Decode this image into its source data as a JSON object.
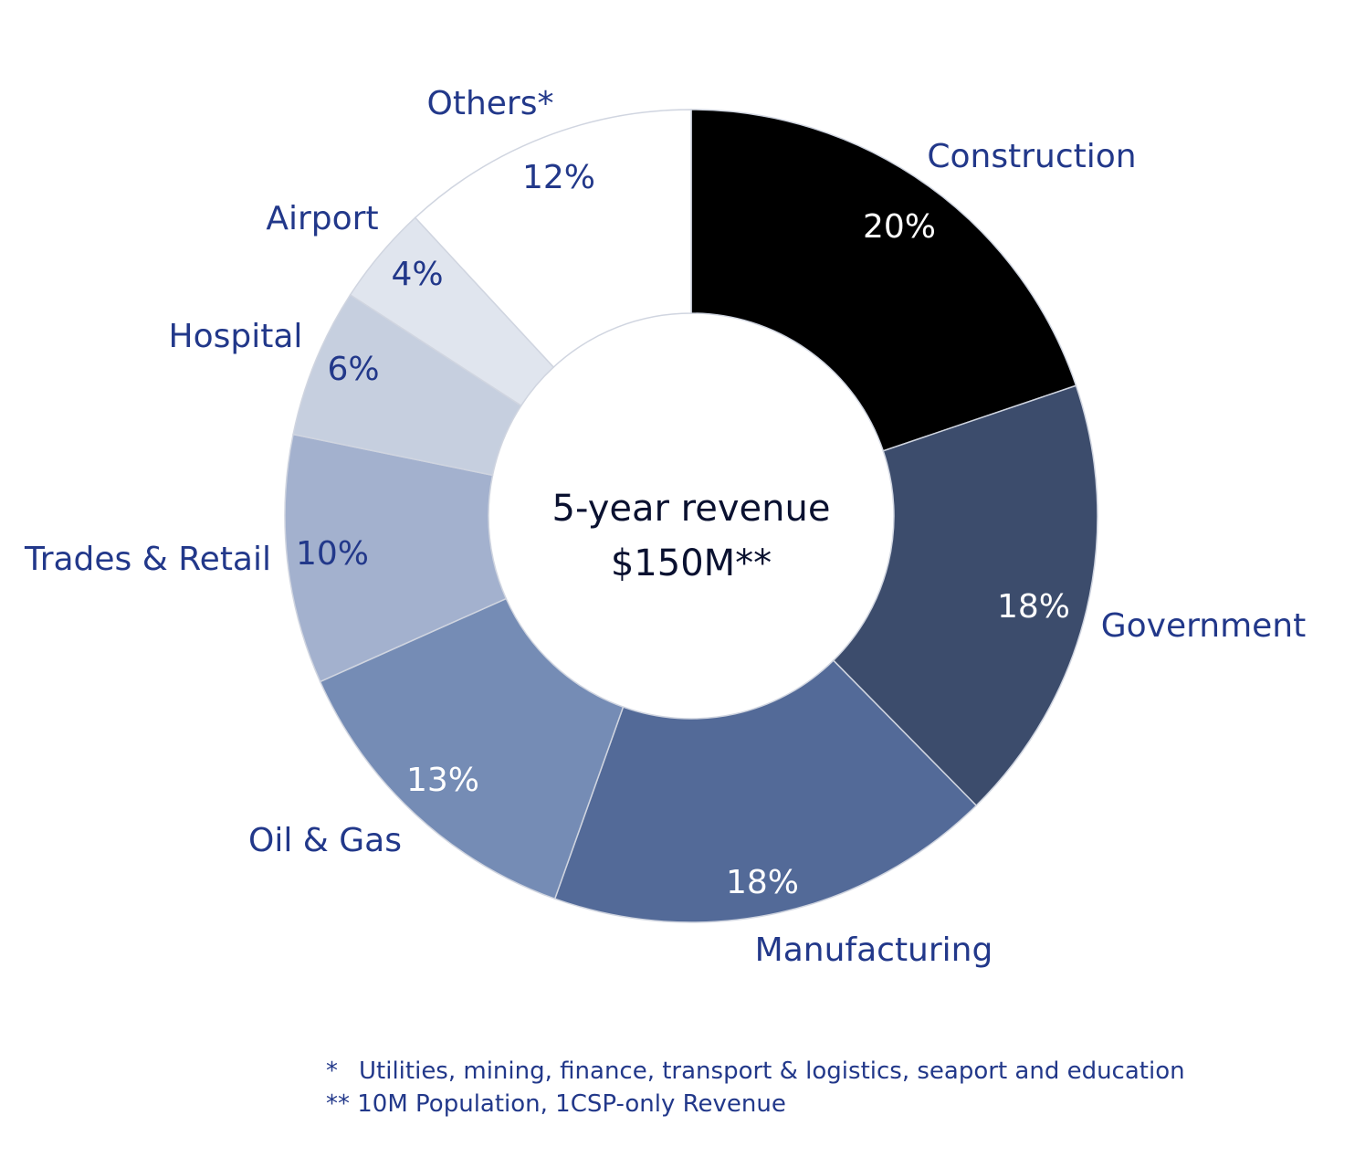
{
  "chart_data": {
    "type": "pie",
    "style": "donut",
    "center_text": {
      "line1": "5-year revenue",
      "line2": "$150M**"
    },
    "series": [
      {
        "label": "Construction",
        "value": 20,
        "display": "20%",
        "color": "#000000",
        "text_color": "#ffffff"
      },
      {
        "label": "Government",
        "value": 18,
        "display": "18%",
        "color": "#3c4c6c",
        "text_color": "#ffffff"
      },
      {
        "label": "Manufacturing",
        "value": 18,
        "display": "18%",
        "color": "#536a98",
        "text_color": "#ffffff"
      },
      {
        "label": "Oil & Gas",
        "value": 13,
        "display": "13%",
        "color": "#758cb5",
        "text_color": "#ffffff"
      },
      {
        "label": "Trades & Retail",
        "value": 10,
        "display": "10%",
        "color": "#a3b1ce",
        "text_color": "#22388a"
      },
      {
        "label": "Hospital",
        "value": 6,
        "display": "6%",
        "color": "#c6cfdf",
        "text_color": "#22388a"
      },
      {
        "label": "Airport",
        "value": 4,
        "display": "4%",
        "color": "#e0e5ee",
        "text_color": "#22388a"
      },
      {
        "label": "Others*",
        "value": 12,
        "display": "12%",
        "color": "#ffffff",
        "text_color": "#22388a"
      }
    ],
    "legend": "none",
    "footnotes": [
      {
        "mark": "*",
        "text": "Utilities, mining, finance, transport & logistics, seaport and education"
      },
      {
        "mark": "**",
        "text": "10M Population, 1CSP-only Revenue"
      }
    ]
  },
  "colors": {
    "label_text": "#22388a",
    "center_text": "#0a1130",
    "slice_border": "#d0d5e0"
  }
}
